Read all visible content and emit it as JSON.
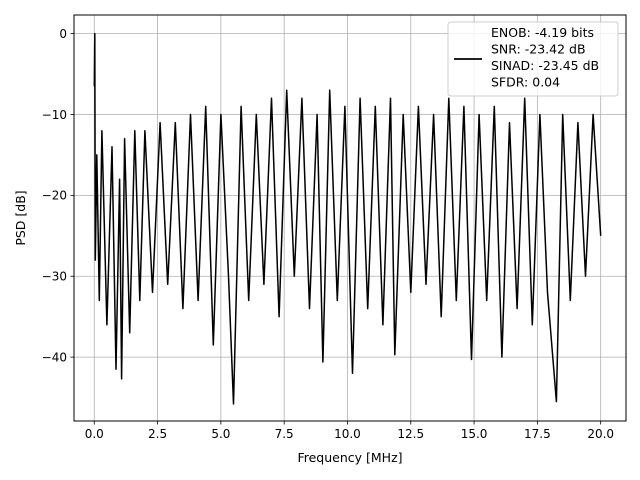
{
  "chart_data": {
    "type": "line",
    "xlabel": "Frequency [MHz]",
    "ylabel": "PSD [dB]",
    "xlim": [
      -0.8,
      21.0
    ],
    "ylim": [
      -47.9,
      2.3
    ],
    "grid": true,
    "legend_placement": "top-right",
    "line_color": "#000000",
    "x_ticks": [
      0.0,
      2.5,
      5.0,
      7.5,
      10.0,
      12.5,
      15.0,
      17.5,
      20.0
    ],
    "x_tick_labels": [
      "0.0",
      "2.5",
      "5.0",
      "7.5",
      "10.0",
      "12.5",
      "15.0",
      "17.5",
      "20.0"
    ],
    "y_ticks": [
      0,
      -10,
      -20,
      -30,
      -40
    ],
    "y_tick_labels": [
      "0",
      "−10",
      "−20",
      "−30",
      "−40"
    ],
    "series": [
      {
        "x": [
          0.0,
          0.02,
          0.04,
          0.1,
          0.2,
          0.3,
          0.5,
          0.7,
          0.86,
          1.0,
          1.08,
          1.2,
          1.4,
          1.6,
          1.8,
          2.0,
          2.3,
          2.6,
          2.9,
          3.2,
          3.5,
          3.8,
          4.1,
          4.4,
          4.7,
          5.0,
          5.3,
          5.5,
          5.8,
          6.1,
          6.4,
          6.7,
          7.0,
          7.3,
          7.6,
          7.9,
          8.2,
          8.5,
          8.8,
          9.03,
          9.3,
          9.6,
          9.9,
          10.2,
          10.5,
          10.8,
          11.1,
          11.4,
          11.7,
          11.87,
          12.2,
          12.5,
          12.8,
          13.1,
          13.4,
          13.7,
          14.0,
          14.3,
          14.6,
          14.9,
          15.2,
          15.5,
          15.8,
          16.1,
          16.4,
          16.7,
          17.0,
          17.3,
          17.6,
          17.9,
          18.25,
          18.5,
          18.8,
          19.1,
          19.4,
          19.7,
          20.0
        ],
        "y": [
          -6.5,
          0.0,
          -28.0,
          -15.0,
          -33.0,
          -12.0,
          -36.0,
          -14.0,
          -41.5,
          -18.0,
          -42.7,
          -13.0,
          -37.0,
          -12.0,
          -33.0,
          -12.0,
          -32.0,
          -11.0,
          -31.0,
          -11.0,
          -34.0,
          -10.0,
          -33.0,
          -9.0,
          -38.5,
          -10.0,
          -30.0,
          -45.8,
          -9.0,
          -33.0,
          -10.0,
          -31.0,
          -8.0,
          -35.0,
          -7.0,
          -30.0,
          -8.0,
          -34.0,
          -10.0,
          -40.6,
          -7.0,
          -33.0,
          -9.0,
          -42.0,
          -8.0,
          -34.0,
          -9.0,
          -36.0,
          -8.0,
          -39.7,
          -10.0,
          -32.0,
          -9.0,
          -31.0,
          -10.0,
          -35.0,
          -8.0,
          -33.0,
          -9.0,
          -40.3,
          -10.0,
          -33.0,
          -9.0,
          -40.0,
          -11.0,
          -34.0,
          -8.0,
          -36.0,
          -10.0,
          -32.0,
          -45.5,
          -10.0,
          -33.0,
          -11.0,
          -30.0,
          -10.0,
          -25.0
        ]
      }
    ]
  },
  "legend": {
    "lines": [
      "ENOB: -4.19 bits",
      "SNR: -23.42 dB",
      "SINAD: -23.45 dB",
      "SFDR: 0.04"
    ]
  }
}
